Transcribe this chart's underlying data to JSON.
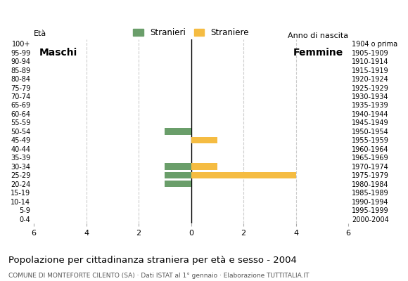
{
  "age_groups": [
    "100+",
    "95-99",
    "90-94",
    "85-89",
    "80-84",
    "75-79",
    "70-74",
    "65-69",
    "60-64",
    "55-59",
    "50-54",
    "45-49",
    "40-44",
    "35-39",
    "30-34",
    "25-29",
    "20-24",
    "15-19",
    "10-14",
    "5-9",
    "0-4"
  ],
  "birth_years": [
    "1904 o prima",
    "1905-1909",
    "1910-1914",
    "1915-1919",
    "1920-1924",
    "1925-1929",
    "1930-1934",
    "1935-1939",
    "1940-1944",
    "1945-1949",
    "1950-1954",
    "1955-1959",
    "1960-1964",
    "1965-1969",
    "1970-1974",
    "1975-1979",
    "1980-1984",
    "1985-1989",
    "1990-1994",
    "1995-1999",
    "2000-2004"
  ],
  "males": [
    0,
    0,
    0,
    0,
    0,
    0,
    0,
    0,
    0,
    0,
    1,
    0,
    0,
    0,
    1,
    1,
    1,
    0,
    0,
    0,
    0
  ],
  "females": [
    0,
    0,
    0,
    0,
    0,
    0,
    0,
    0,
    0,
    0,
    0,
    1,
    0,
    0,
    1,
    4,
    0,
    0,
    0,
    0,
    0
  ],
  "male_color": "#6a9e6a",
  "female_color": "#f5bc42",
  "title": "Popolazione per cittadinanza straniera per età e sesso - 2004",
  "subtitle": "COMUNE DI MONTEFORTE CILENTO (SA) · Dati ISTAT al 1° gennaio · Elaborazione TUTTITALIA.IT",
  "legend_male": "Stranieri",
  "legend_female": "Straniere",
  "xlim": 6,
  "ylabel_left": "Età",
  "anno_nascita": "Anno di nascita",
  "label_maschi": "Maschi",
  "label_femmine": "Femmine",
  "background_color": "#ffffff",
  "grid_color": "#cccccc",
  "bar_height": 0.75
}
